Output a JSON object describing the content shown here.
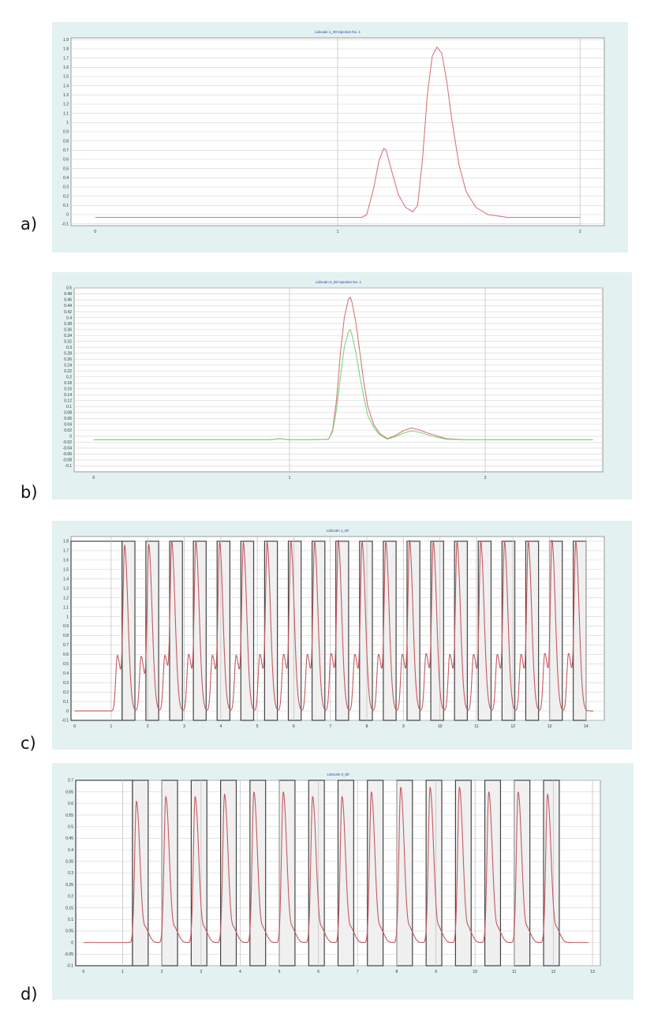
{
  "panels": [
    "a)",
    "b)",
    "c)",
    "d)"
  ],
  "chart_data": [
    {
      "id": "a",
      "type": "line",
      "title": "Lidocain 1_00 Injection No. 1",
      "xlim": [
        -0.1,
        2.1
      ],
      "ylim": [
        -0.12,
        1.92
      ],
      "x_ticks": [
        "0",
        "1",
        "2"
      ],
      "x_tick_values": [
        0,
        1,
        2
      ],
      "y_ticks": [
        "-0.1",
        "0",
        "0.1",
        "0.2",
        "0.3",
        "0.4",
        "0.5",
        "0.6",
        "0.7",
        "0.8",
        "0.9",
        "1",
        "1.1",
        "1.2",
        "1.3",
        "1.4",
        "1.5",
        "1.6",
        "1.7",
        "1.8",
        "1.9"
      ],
      "y_tick_values": [
        -0.1,
        0,
        0.1,
        0.2,
        0.3,
        0.4,
        0.5,
        0.6,
        0.7,
        0.8,
        0.9,
        1,
        1.1,
        1.2,
        1.3,
        1.4,
        1.5,
        1.6,
        1.7,
        1.8,
        1.9
      ],
      "x_grid": [
        1,
        2
      ],
      "grid": true,
      "legend": "none",
      "series": [
        {
          "color": "#d9767a",
          "x": [
            0,
            0.5,
            1.0,
            1.1,
            1.12,
            1.15,
            1.17,
            1.19,
            1.2,
            1.22,
            1.25,
            1.28,
            1.31,
            1.33,
            1.35,
            1.37,
            1.39,
            1.41,
            1.43,
            1.45,
            1.47,
            1.5,
            1.53,
            1.57,
            1.62,
            1.7,
            1.8,
            1.9,
            2.0
          ],
          "y": [
            -0.03,
            -0.03,
            -0.03,
            -0.03,
            0.0,
            0.3,
            0.58,
            0.72,
            0.7,
            0.5,
            0.22,
            0.08,
            0.03,
            0.1,
            0.6,
            1.3,
            1.72,
            1.82,
            1.75,
            1.45,
            1.05,
            0.55,
            0.25,
            0.08,
            0.0,
            -0.03,
            -0.03,
            -0.03,
            -0.03
          ]
        }
      ]
    },
    {
      "id": "b",
      "type": "line",
      "title": "Lidocain 0_50 Injection No. 1",
      "xlim": [
        -0.1,
        2.6
      ],
      "ylim": [
        -0.12,
        0.5
      ],
      "x_ticks": [
        "0",
        "1",
        "2"
      ],
      "x_tick_values": [
        0,
        1,
        2
      ],
      "y_ticks": [
        "-0.1",
        "-0.08",
        "-0.06",
        "-0.04",
        "-0.02",
        "0",
        "0.02",
        "0.04",
        "0.06",
        "0.08",
        "0.1",
        "0.12",
        "0.14",
        "0.16",
        "0.18",
        "0.2",
        "0.22",
        "0.24",
        "0.26",
        "0.28",
        "0.3",
        "0.32",
        "0.34",
        "0.36",
        "0.38",
        "0.4",
        "0.42",
        "0.44",
        "0.46",
        "0.48",
        "0.5"
      ],
      "y_tick_values": [
        -0.1,
        -0.08,
        -0.06,
        -0.04,
        -0.02,
        0,
        0.02,
        0.04,
        0.06,
        0.08,
        0.1,
        0.12,
        0.14,
        0.16,
        0.18,
        0.2,
        0.22,
        0.24,
        0.26,
        0.28,
        0.3,
        0.32,
        0.34,
        0.36,
        0.38,
        0.4,
        0.42,
        0.44,
        0.46,
        0.48,
        0.5
      ],
      "x_grid": [
        1,
        2
      ],
      "grid": true,
      "legend": "none",
      "series": [
        {
          "color": "#d9767a",
          "x": [
            0,
            0.5,
            0.9,
            0.95,
            1.0,
            1.1,
            1.2,
            1.22,
            1.24,
            1.26,
            1.28,
            1.3,
            1.31,
            1.32,
            1.34,
            1.36,
            1.38,
            1.4,
            1.43,
            1.46,
            1.5,
            1.54,
            1.58,
            1.62,
            1.66,
            1.7,
            1.75,
            1.8,
            1.9,
            2.0,
            2.3,
            2.55
          ],
          "y": [
            -0.012,
            -0.012,
            -0.012,
            -0.008,
            -0.012,
            -0.012,
            -0.01,
            0.02,
            0.12,
            0.28,
            0.4,
            0.46,
            0.47,
            0.45,
            0.38,
            0.28,
            0.18,
            0.1,
            0.04,
            0.01,
            -0.008,
            0.002,
            0.018,
            0.028,
            0.022,
            0.012,
            0.002,
            -0.008,
            -0.012,
            -0.012,
            -0.012,
            -0.012
          ]
        },
        {
          "color": "#7fd37f",
          "x": [
            0,
            0.5,
            0.9,
            0.95,
            1.0,
            1.1,
            1.2,
            1.22,
            1.24,
            1.26,
            1.28,
            1.3,
            1.31,
            1.32,
            1.34,
            1.36,
            1.38,
            1.4,
            1.43,
            1.46,
            1.5,
            1.54,
            1.58,
            1.62,
            1.66,
            1.7,
            1.75,
            1.8,
            1.9,
            2.0,
            2.3,
            2.55
          ],
          "y": [
            -0.012,
            -0.012,
            -0.012,
            -0.008,
            -0.012,
            -0.012,
            -0.01,
            0.015,
            0.09,
            0.2,
            0.3,
            0.35,
            0.36,
            0.34,
            0.28,
            0.2,
            0.13,
            0.07,
            0.03,
            0.005,
            -0.01,
            -0.002,
            0.01,
            0.018,
            0.014,
            0.006,
            -0.003,
            -0.01,
            -0.012,
            -0.012,
            -0.012,
            -0.012
          ]
        }
      ]
    },
    {
      "id": "c",
      "type": "line",
      "title": "Lidocain 1_00",
      "xlim": [
        -0.1,
        14.5
      ],
      "ylim": [
        -0.1,
        1.85
      ],
      "x_ticks": [
        "0",
        "1",
        "2",
        "3",
        "4",
        "5",
        "6",
        "7",
        "8",
        "9",
        "10",
        "11",
        "12",
        "13",
        "14"
      ],
      "x_tick_values": [
        0,
        1,
        2,
        3,
        4,
        5,
        6,
        7,
        8,
        9,
        10,
        11,
        12,
        13,
        14
      ],
      "y_ticks": [
        "-0.1",
        "0",
        "0.1",
        "0.2",
        "0.3",
        "0.4",
        "0.5",
        "0.6",
        "0.7",
        "0.8",
        "0.9",
        "1",
        "1.1",
        "1.2",
        "1.3",
        "1.4",
        "1.5",
        "1.6",
        "1.7",
        "1.8"
      ],
      "y_tick_values": [
        -0.1,
        0,
        0.1,
        0.2,
        0.3,
        0.4,
        0.5,
        0.6,
        0.7,
        0.8,
        0.9,
        1,
        1.1,
        1.2,
        1.3,
        1.4,
        1.5,
        1.6,
        1.7,
        1.8
      ],
      "x_grid": [
        1,
        2,
        3,
        4,
        5,
        6,
        7,
        8,
        9,
        10,
        11,
        12,
        13,
        14
      ],
      "grid": true,
      "legend": "none",
      "bands": [
        [
          1.3,
          1.65
        ],
        [
          1.95,
          2.3
        ],
        [
          2.6,
          2.95
        ],
        [
          3.25,
          3.6
        ],
        [
          3.9,
          4.25
        ],
        [
          4.55,
          4.9
        ],
        [
          5.2,
          5.55
        ],
        [
          5.85,
          6.2
        ],
        [
          6.5,
          6.85
        ],
        [
          7.15,
          7.5
        ],
        [
          7.8,
          8.15
        ],
        [
          8.45,
          8.8
        ],
        [
          9.1,
          9.45
        ],
        [
          9.75,
          10.1
        ],
        [
          10.4,
          10.75
        ],
        [
          11.05,
          11.4
        ],
        [
          11.7,
          12.05
        ],
        [
          12.35,
          12.7
        ],
        [
          13.0,
          13.35
        ],
        [
          13.65,
          14.0
        ]
      ],
      "band_top": 1.8,
      "first_box": [
        -0.1,
        1.3
      ],
      "series": [
        {
          "color": "#c45a5f",
          "baseline": 0,
          "peaks": [
            [
              1.17,
              0.59
            ],
            [
              1.37,
              1.71
            ],
            [
              1.82,
              0.58
            ],
            [
              2.03,
              1.73
            ],
            [
              2.47,
              0.59
            ],
            [
              2.66,
              1.74
            ],
            [
              3.12,
              0.6
            ],
            [
              3.32,
              1.75
            ],
            [
              3.77,
              0.59
            ],
            [
              3.97,
              1.74
            ],
            [
              4.42,
              0.59
            ],
            [
              4.62,
              1.74
            ],
            [
              5.07,
              0.6
            ],
            [
              5.27,
              1.74
            ],
            [
              5.72,
              0.6
            ],
            [
              5.92,
              1.75
            ],
            [
              6.37,
              0.6
            ],
            [
              6.57,
              1.75
            ],
            [
              7.02,
              0.61
            ],
            [
              7.22,
              1.76
            ],
            [
              7.67,
              0.6
            ],
            [
              7.87,
              1.75
            ],
            [
              8.32,
              0.6
            ],
            [
              8.52,
              1.75
            ],
            [
              8.97,
              0.6
            ],
            [
              9.17,
              1.76
            ],
            [
              9.62,
              0.61
            ],
            [
              9.82,
              1.75
            ],
            [
              10.27,
              0.6
            ],
            [
              10.47,
              1.75
            ],
            [
              10.92,
              0.6
            ],
            [
              11.12,
              1.75
            ],
            [
              11.57,
              0.6
            ],
            [
              11.77,
              1.75
            ],
            [
              12.22,
              0.6
            ],
            [
              12.42,
              1.75
            ],
            [
              12.87,
              0.61
            ],
            [
              13.07,
              1.76
            ],
            [
              13.52,
              0.61
            ],
            [
              13.72,
              1.75
            ]
          ]
        }
      ]
    },
    {
      "id": "d",
      "type": "line",
      "title": "Lidocain 0_50",
      "xlim": [
        -0.2,
        13.2
      ],
      "ylim": [
        -0.1,
        0.7
      ],
      "x_ticks": [
        "0",
        "1",
        "2",
        "3",
        "4",
        "5",
        "6",
        "7",
        "8",
        "9",
        "10",
        "11",
        "12",
        "13"
      ],
      "x_tick_values": [
        0,
        1,
        2,
        3,
        4,
        5,
        6,
        7,
        8,
        9,
        10,
        11,
        12,
        13
      ],
      "y_ticks": [
        "-0.1",
        "-0.05",
        "0",
        "0.05",
        "0.1",
        "0.15",
        "0.2",
        "0.25",
        "0.3",
        "0.35",
        "0.4",
        "0.45",
        "0.5",
        "0.55",
        "0.6",
        "0.65",
        "0.7"
      ],
      "y_tick_values": [
        -0.1,
        -0.05,
        0,
        0.05,
        0.1,
        0.15,
        0.2,
        0.25,
        0.3,
        0.35,
        0.4,
        0.45,
        0.5,
        0.55,
        0.6,
        0.65,
        0.7
      ],
      "x_grid": [
        1,
        2,
        3,
        4,
        5,
        6,
        7,
        8,
        9,
        10,
        11,
        12,
        13
      ],
      "grid": true,
      "legend": "none",
      "bands": [
        [
          1.25,
          1.65
        ],
        [
          2.0,
          2.4
        ],
        [
          2.75,
          3.15
        ],
        [
          3.5,
          3.9
        ],
        [
          4.25,
          4.65
        ],
        [
          5.0,
          5.4
        ],
        [
          5.75,
          6.15
        ],
        [
          6.5,
          6.9
        ],
        [
          7.25,
          7.65
        ],
        [
          8.0,
          8.4
        ],
        [
          8.75,
          9.15
        ],
        [
          9.5,
          9.9
        ],
        [
          10.25,
          10.65
        ],
        [
          11.0,
          11.4
        ],
        [
          11.75,
          12.15
        ]
      ],
      "band_top": 0.7,
      "first_box": [
        -0.2,
        1.25
      ],
      "series": [
        {
          "color": "#c45a5f",
          "baseline": 0,
          "peaks": [
            [
              1.35,
              0.61
            ],
            [
              1.6,
              0.05
            ],
            [
              2.1,
              0.63
            ],
            [
              2.35,
              0.05
            ],
            [
              2.85,
              0.63
            ],
            [
              3.1,
              0.05
            ],
            [
              3.6,
              0.64
            ],
            [
              3.85,
              0.05
            ],
            [
              4.35,
              0.65
            ],
            [
              4.6,
              0.05
            ],
            [
              5.1,
              0.65
            ],
            [
              5.35,
              0.05
            ],
            [
              5.85,
              0.63
            ],
            [
              6.1,
              0.05
            ],
            [
              6.6,
              0.63
            ],
            [
              6.85,
              0.05
            ],
            [
              7.35,
              0.65
            ],
            [
              7.6,
              0.05
            ],
            [
              8.1,
              0.67
            ],
            [
              8.35,
              0.05
            ],
            [
              8.85,
              0.67
            ],
            [
              9.1,
              0.05
            ],
            [
              9.6,
              0.67
            ],
            [
              9.85,
              0.05
            ],
            [
              10.35,
              0.65
            ],
            [
              10.6,
              0.05
            ],
            [
              11.1,
              0.65
            ],
            [
              11.35,
              0.05
            ],
            [
              11.85,
              0.64
            ],
            [
              12.1,
              0.05
            ]
          ]
        }
      ]
    }
  ]
}
